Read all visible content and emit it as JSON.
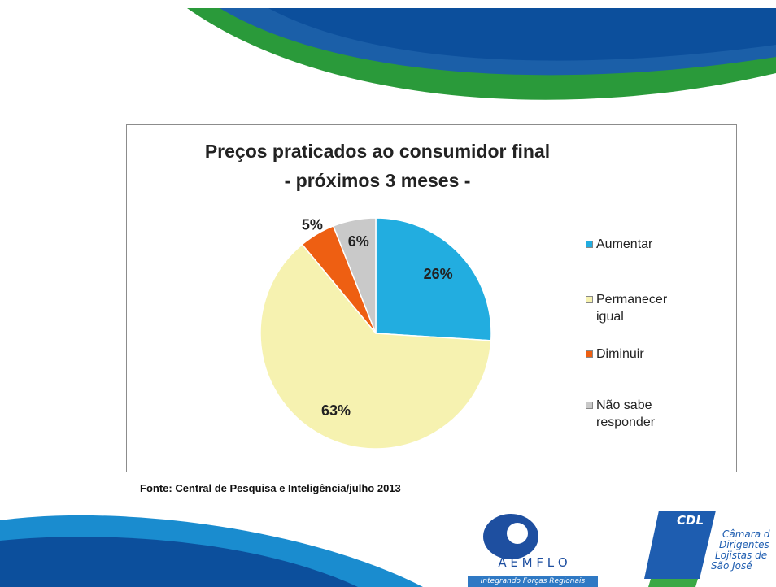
{
  "chart_data": {
    "type": "pie",
    "title": "Preços praticados ao consumidor final",
    "subtitle": "- próximos 3 meses -",
    "categories": [
      "Aumentar",
      "Permanecer igual",
      "Diminuir",
      "Não sabe responder"
    ],
    "values": [
      26,
      63,
      5,
      6
    ],
    "value_labels": [
      "26%",
      "63%",
      "5%",
      "6%"
    ],
    "colors": [
      "#22ade0",
      "#f6f2b0",
      "#ee5f12",
      "#c9c9c9"
    ],
    "legend": "right"
  },
  "source": "Fonte: Central de Pesquisa e Inteligência/julho 2013",
  "logos": {
    "aemflo": "A E M F L O",
    "aemflo_tagline": "Integrando Forças Regionais",
    "cdl": "CDL",
    "cdl_name": [
      "Câmara d",
      "Dirigentes",
      "Lojistas de",
      "São José"
    ]
  }
}
